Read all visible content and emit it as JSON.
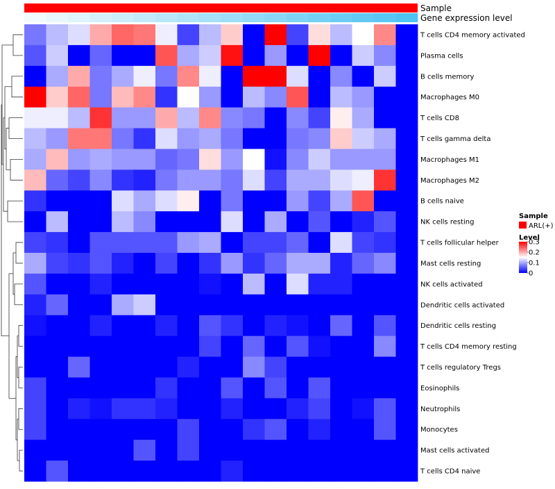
{
  "chart_data": {
    "type": "heatmap",
    "title": "",
    "annotation_tracks": [
      {
        "name": "Sample",
        "label": "Sample"
      },
      {
        "name": "Gene expression level",
        "label": "Gene expression level",
        "values": [
          0.02,
          0.06,
          0.1,
          0.14,
          0.18,
          0.22,
          0.26,
          0.3,
          0.34,
          0.38,
          0.42,
          0.46,
          0.5,
          0.54,
          0.58,
          0.62,
          0.66,
          0.7
        ]
      }
    ],
    "rows": [
      "T cells CD4 memory activated",
      "Plasma cells",
      "B cells memory",
      "Macrophages M0",
      "T cells CD8",
      "T cells gamma delta",
      "Macrophages M1",
      "Macrophages M2",
      "B cells naive",
      "NK cells resting",
      "T cells follicular helper",
      "Mast cells resting",
      "NK cells activated",
      "Dendritic cells activated",
      "Dendritic cells resting",
      "T cells CD4 memory resting",
      "T cells regulatory  Tregs",
      "Eosinophils",
      "Neutrophils",
      "Monocytes",
      "Mast cells activated",
      "T cells CD4 naive"
    ],
    "n_columns": 18,
    "values": [
      [
        0.07,
        0.11,
        0.13,
        0.2,
        0.24,
        0.23,
        0.14,
        0.04,
        0.11,
        0.18,
        0.0,
        0.3,
        0.04,
        0.17,
        0.11,
        0.15,
        0.22,
        0.0
      ],
      [
        0.05,
        0.12,
        0.0,
        0.06,
        0.0,
        0.0,
        0.25,
        0.1,
        0.12,
        0.29,
        0.0,
        0.09,
        0.0,
        0.3,
        0.0,
        0.12,
        0.08,
        0.0
      ],
      [
        0.0,
        0.1,
        0.2,
        0.07,
        0.1,
        0.14,
        0.07,
        0.22,
        0.14,
        0.0,
        0.3,
        0.3,
        0.13,
        0.0,
        0.08,
        0.0,
        0.12,
        0.0
      ],
      [
        0.3,
        0.18,
        0.24,
        0.07,
        0.19,
        0.22,
        0.03,
        0.15,
        0.09,
        0.0,
        0.11,
        0.08,
        0.25,
        0.0,
        0.11,
        0.09,
        0.0,
        0.0
      ],
      [
        0.14,
        0.14,
        0.11,
        0.27,
        0.09,
        0.09,
        0.2,
        0.11,
        0.22,
        0.08,
        0.07,
        0.0,
        0.08,
        0.04,
        0.16,
        0.1,
        0.0,
        0.0
      ],
      [
        0.11,
        0.09,
        0.23,
        0.23,
        0.07,
        0.03,
        0.13,
        0.09,
        0.1,
        0.07,
        0.0,
        0.0,
        0.07,
        0.08,
        0.18,
        0.12,
        0.1,
        0.0
      ],
      [
        0.1,
        0.19,
        0.09,
        0.1,
        0.09,
        0.09,
        0.06,
        0.07,
        0.17,
        0.09,
        0.15,
        0.01,
        0.08,
        0.12,
        0.09,
        0.09,
        0.09,
        0.0
      ],
      [
        0.19,
        0.06,
        0.04,
        0.08,
        0.03,
        0.02,
        0.07,
        0.09,
        0.09,
        0.07,
        0.13,
        0.04,
        0.1,
        0.1,
        0.13,
        0.14,
        0.27,
        0.0
      ],
      [
        0.03,
        0.0,
        0.0,
        0.0,
        0.13,
        0.1,
        0.13,
        0.16,
        0.0,
        0.07,
        0.0,
        0.0,
        0.09,
        0.04,
        0.1,
        0.25,
        0.0,
        0.0
      ],
      [
        0.0,
        0.11,
        0.0,
        0.0,
        0.11,
        0.08,
        0.0,
        0.0,
        0.0,
        0.13,
        0.0,
        0.1,
        0.0,
        0.05,
        0.0,
        0.02,
        0.05,
        0.0
      ],
      [
        0.04,
        0.03,
        0.0,
        0.05,
        0.05,
        0.05,
        0.05,
        0.09,
        0.1,
        0.0,
        0.04,
        0.04,
        0.06,
        0.0,
        0.13,
        0.04,
        0.03,
        0.0
      ],
      [
        0.1,
        0.04,
        0.03,
        0.05,
        0.02,
        0.0,
        0.04,
        0.0,
        0.03,
        0.09,
        0.03,
        0.06,
        0.1,
        0.1,
        0.02,
        0.06,
        0.08,
        0.0
      ],
      [
        0.05,
        0.0,
        0.0,
        0.02,
        0.0,
        0.0,
        0.0,
        0.0,
        0.01,
        0.0,
        0.11,
        0.0,
        0.13,
        0.02,
        0.02,
        0.0,
        0.0,
        0.0
      ],
      [
        0.02,
        0.06,
        0.0,
        0.0,
        0.1,
        0.12,
        0.0,
        0.0,
        0.0,
        0.0,
        0.0,
        0.0,
        0.0,
        0.0,
        0.0,
        0.0,
        0.0,
        0.0
      ],
      [
        0.01,
        0.0,
        0.0,
        0.02,
        0.0,
        0.0,
        0.02,
        0.0,
        0.05,
        0.03,
        0.0,
        0.02,
        0.01,
        0.0,
        0.06,
        0.0,
        0.05,
        0.0
      ],
      [
        0.0,
        0.0,
        0.0,
        0.0,
        0.0,
        0.0,
        0.0,
        0.0,
        0.04,
        0.0,
        0.06,
        0.0,
        0.05,
        0.01,
        0.0,
        0.0,
        0.08,
        0.0
      ],
      [
        0.0,
        0.0,
        0.06,
        0.0,
        0.0,
        0.0,
        0.0,
        0.02,
        0.0,
        0.0,
        0.08,
        0.04,
        0.0,
        0.0,
        0.0,
        0.0,
        0.0,
        0.0
      ],
      [
        0.04,
        0.0,
        0.0,
        0.0,
        0.0,
        0.0,
        0.03,
        0.0,
        0.0,
        0.05,
        0.0,
        0.05,
        0.0,
        0.05,
        0.0,
        0.0,
        0.0,
        0.0
      ],
      [
        0.04,
        0.0,
        0.02,
        0.01,
        0.03,
        0.03,
        0.02,
        0.0,
        0.0,
        0.02,
        0.0,
        0.0,
        0.02,
        0.04,
        0.0,
        0.01,
        0.05,
        0.0
      ],
      [
        0.04,
        0.0,
        0.0,
        0.0,
        0.0,
        0.0,
        0.0,
        0.04,
        0.0,
        0.0,
        0.03,
        0.05,
        0.0,
        0.02,
        0.0,
        0.0,
        0.05,
        0.0
      ],
      [
        0.0,
        0.0,
        0.0,
        0.0,
        0.0,
        0.05,
        0.0,
        0.04,
        0.0,
        0.0,
        0.0,
        0.0,
        0.0,
        0.0,
        0.0,
        0.0,
        0.0,
        0.0
      ],
      [
        0.0,
        0.05,
        0.0,
        0.0,
        0.0,
        0.0,
        0.0,
        0.0,
        0.0,
        0.02,
        0.0,
        0.0,
        0.0,
        0.0,
        0.0,
        0.0,
        0.0,
        0.0
      ]
    ],
    "color_scale": {
      "min": 0,
      "max": 0.3,
      "low": "#0000ff",
      "mid": "#ffffff",
      "high": "#ff0000",
      "mid_value": 0.15
    },
    "annotation_colors": {
      "sample": "#ff0000",
      "gene_expression_low": "#f2fafd",
      "gene_expression_high": "#4fc3f2"
    },
    "legend": {
      "sample_title": "Sample",
      "sample_items": [
        {
          "label": "ARL(+)",
          "color": "#ff0000"
        }
      ],
      "level_title": "Level",
      "level_ticks": [
        {
          "value": 0.3,
          "label": "0.3"
        },
        {
          "value": 0.2,
          "label": "0.2"
        },
        {
          "value": 0.1,
          "label": "0.1"
        },
        {
          "value": 0,
          "label": "0"
        }
      ],
      "placement": "right"
    },
    "row_dendrogram": "left"
  }
}
